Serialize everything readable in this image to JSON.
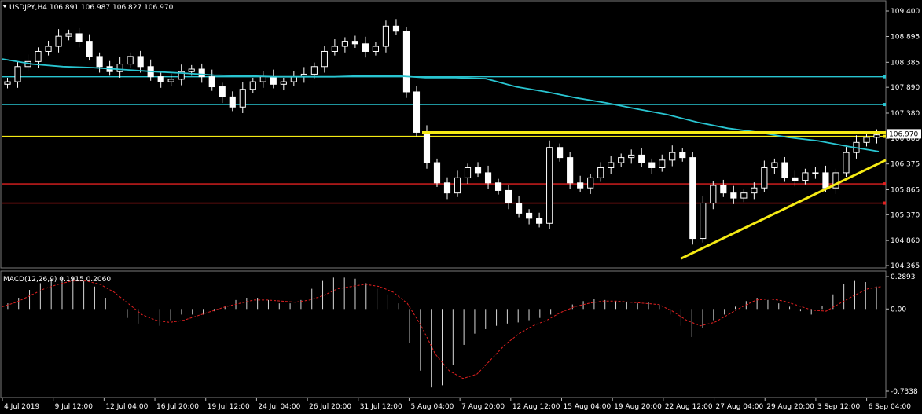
{
  "chart_data": [
    {
      "type": "candlestick",
      "title": "USDJPY,H4",
      "ohlc_header": "106.891 106.987 106.827 106.970",
      "ylim": [
        104.365,
        109.4
      ],
      "yticks": [
        "109.400",
        "108.895",
        "108.385",
        "107.890",
        "107.380",
        "106.880",
        "106.375",
        "105.865",
        "105.370",
        "104.860",
        "104.365"
      ],
      "last_price": "106.970",
      "xticks": [
        "4 Jul 2019",
        "9 Jul 12:00",
        "12 Jul 04:00",
        "16 Jul 20:00",
        "19 Jul 12:00",
        "24 Jul 04:00",
        "26 Jul 20:00",
        "31 Jul 12:00",
        "5 Aug 04:00",
        "7 Aug 20:00",
        "12 Aug 12:00",
        "15 Aug 04:00",
        "19 Aug 20:00",
        "22 Aug 12:00",
        "27 Aug 04:00",
        "29 Aug 20:00",
        "3 Sep 12:00",
        "6 Sep 04:00"
      ],
      "closes": [
        108.0,
        108.3,
        108.4,
        108.6,
        108.7,
        108.9,
        108.95,
        108.8,
        108.5,
        108.3,
        108.2,
        108.35,
        108.5,
        108.3,
        108.1,
        108.0,
        108.05,
        108.2,
        108.25,
        108.1,
        107.9,
        107.7,
        107.5,
        107.85,
        108.0,
        108.1,
        107.95,
        108.0,
        108.1,
        108.15,
        108.3,
        108.6,
        108.7,
        108.8,
        108.75,
        108.6,
        108.7,
        109.1,
        109.0,
        107.8,
        107.0,
        106.4,
        106.0,
        105.8,
        106.1,
        106.3,
        106.2,
        106.0,
        105.85,
        105.6,
        105.4,
        105.3,
        105.2,
        106.7,
        106.5,
        106.0,
        105.9,
        106.1,
        106.3,
        106.4,
        106.5,
        106.55,
        106.4,
        106.3,
        106.45,
        106.6,
        106.5,
        104.9,
        105.6,
        105.95,
        105.8,
        105.7,
        105.8,
        105.9,
        106.3,
        106.4,
        106.1,
        106.05,
        106.2,
        106.2,
        105.9,
        106.2,
        106.6,
        106.8,
        106.9,
        106.95
      ],
      "series": [
        {
          "name": "MA",
          "color": "#29c5d1",
          "values": [
            108.45,
            108.35,
            108.3,
            108.28,
            108.24,
            108.2,
            108.17,
            108.13,
            108.12,
            108.1,
            108.1,
            108.1,
            108.12,
            108.12,
            108.08,
            108.08,
            108.06,
            107.9,
            107.8,
            107.68,
            107.58,
            107.46,
            107.35,
            107.2,
            107.08,
            107.0,
            106.9,
            106.83,
            106.72,
            106.62
          ]
        }
      ],
      "horizontal_lines": [
        {
          "value": 108.1,
          "color": "#29c5d1"
        },
        {
          "value": 107.55,
          "color": "#29c5d1"
        },
        {
          "value": 106.92,
          "color": "#f5ea14"
        },
        {
          "value": 105.98,
          "color": "#e02020"
        },
        {
          "value": 105.6,
          "color": "#e02020"
        }
      ],
      "trendlines": [
        {
          "x": [
            866,
            1127
          ],
          "y": [
            104.5,
            106.45
          ],
          "color": "#f5ea14"
        },
        {
          "x": [
            537,
            1127
          ],
          "y": [
            107.0,
            107.0
          ],
          "color": "#f5ea14"
        }
      ],
      "grid": true
    },
    {
      "type": "bar",
      "title": "MACD(12,26,9) 0.1915 0.2060",
      "ylim": [
        -0.7338,
        0.2893
      ],
      "yticks": [
        "0.2893",
        "0.00",
        "-0.7338"
      ],
      "histogram": [
        0.05,
        0.1,
        0.17,
        0.23,
        0.27,
        0.28,
        0.28,
        0.25,
        0.2,
        0.1,
        0.0,
        -0.08,
        -0.13,
        -0.15,
        -0.15,
        -0.1,
        -0.05,
        -0.05,
        -0.05,
        -0.02,
        0.03,
        0.08,
        0.1,
        0.1,
        0.08,
        0.05,
        0.05,
        0.08,
        0.18,
        0.25,
        0.28,
        0.28,
        0.27,
        0.23,
        0.18,
        0.13,
        0.05,
        -0.3,
        -0.55,
        -0.7,
        -0.68,
        -0.5,
        -0.32,
        -0.22,
        -0.18,
        -0.15,
        -0.13,
        -0.12,
        -0.1,
        -0.08,
        -0.05,
        0.0,
        0.04,
        0.07,
        0.09,
        0.08,
        0.07,
        0.06,
        0.05,
        0.06,
        0.04,
        -0.05,
        -0.15,
        -0.25,
        -0.17,
        -0.1,
        -0.05,
        0.02,
        0.07,
        0.1,
        0.08,
        0.05,
        0.02,
        -0.02,
        -0.05,
        0.03,
        0.13,
        0.22,
        0.25,
        0.24,
        0.2
      ],
      "signal": [
        0.02,
        0.06,
        0.12,
        0.18,
        0.22,
        0.25,
        0.25,
        0.22,
        0.15,
        0.05,
        -0.05,
        -0.1,
        -0.12,
        -0.1,
        -0.06,
        -0.02,
        0.02,
        0.05,
        0.08,
        0.08,
        0.07,
        0.06,
        0.08,
        0.12,
        0.18,
        0.2,
        0.22,
        0.2,
        0.15,
        0.05,
        -0.15,
        -0.4,
        -0.55,
        -0.62,
        -0.58,
        -0.45,
        -0.32,
        -0.22,
        -0.15,
        -0.1,
        -0.03,
        0.02,
        0.05,
        0.07,
        0.07,
        0.06,
        0.05,
        0.04,
        -0.02,
        -0.1,
        -0.15,
        -0.12,
        -0.05,
        0.02,
        0.08,
        0.09,
        0.07,
        0.03,
        -0.01,
        -0.02,
        0.05,
        0.12,
        0.18,
        0.2
      ]
    }
  ]
}
